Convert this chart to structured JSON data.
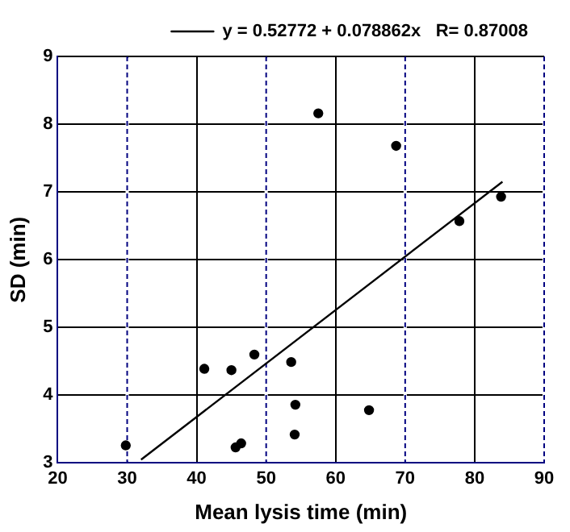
{
  "chart_data": {
    "type": "scatter",
    "xlabel": "Mean lysis time (min)",
    "ylabel": "SD (min)",
    "xlim": [
      20,
      90
    ],
    "xticks": [
      20,
      30,
      40,
      50,
      60,
      70,
      80,
      90
    ],
    "ylim": [
      3,
      9
    ],
    "yticks": [
      3,
      4,
      5,
      6,
      7,
      8,
      9
    ],
    "grid": true,
    "legend": "top",
    "marker": "circle",
    "series": [
      {
        "color": "#000000",
        "x": [
          29.8,
          41.1,
          45.0,
          48.3,
          53.6,
          54.2,
          64.8,
          54.1,
          45.6,
          46.4,
          57.5,
          68.7,
          77.8,
          83.8
        ],
        "values": [
          3.26,
          4.39,
          4.37,
          4.6,
          4.49,
          3.86,
          3.78,
          3.42,
          3.23,
          3.29,
          8.16,
          7.68,
          6.57,
          6.93
        ]
      },
      {
        "type": "line",
        "name": "y = 0.52772 + 0.078862x   R= 0.87008",
        "color": "#000000",
        "x": [
          32,
          84
        ],
        "values": [
          3.05,
          7.15
        ],
        "marker": "none"
      }
    ]
  }
}
